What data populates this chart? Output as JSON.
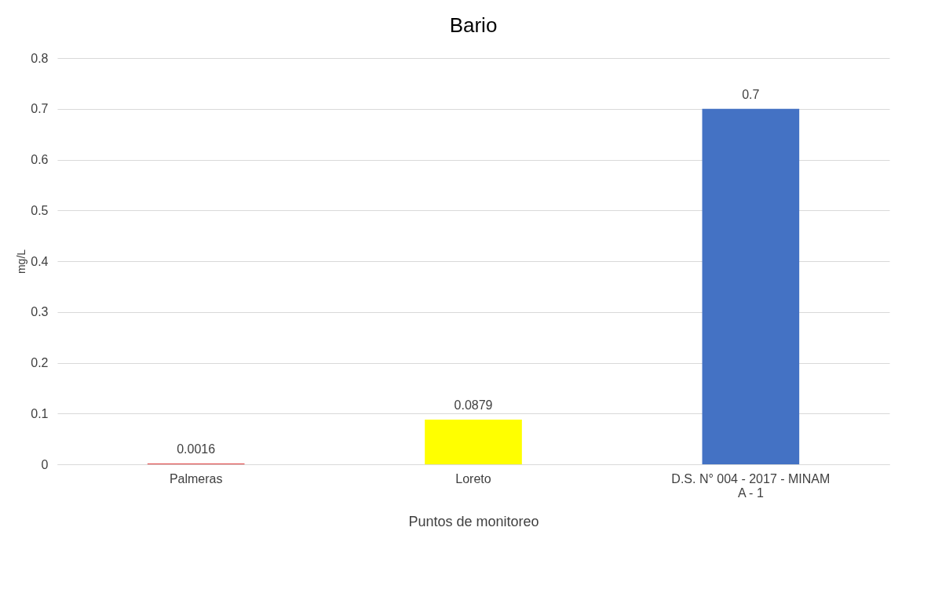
{
  "chart_data": {
    "type": "bar",
    "title": "Bario",
    "xlabel": "Puntos de monitoreo",
    "ylabel": "mg/L",
    "categories": [
      "Palmeras",
      "Loreto",
      "D.S. N° 004 - 2017 - MINAM\nA - 1"
    ],
    "values": [
      0.0016,
      0.0879,
      0.7
    ],
    "colors": [
      "#e03c3c",
      "#ffff00",
      "#4472c4"
    ],
    "ylim": [
      0,
      0.8
    ],
    "yticks": [
      0,
      0.1,
      0.2,
      0.3,
      0.4,
      0.5,
      0.6,
      0.7,
      0.8
    ],
    "grid": "y",
    "data_labels": true
  }
}
